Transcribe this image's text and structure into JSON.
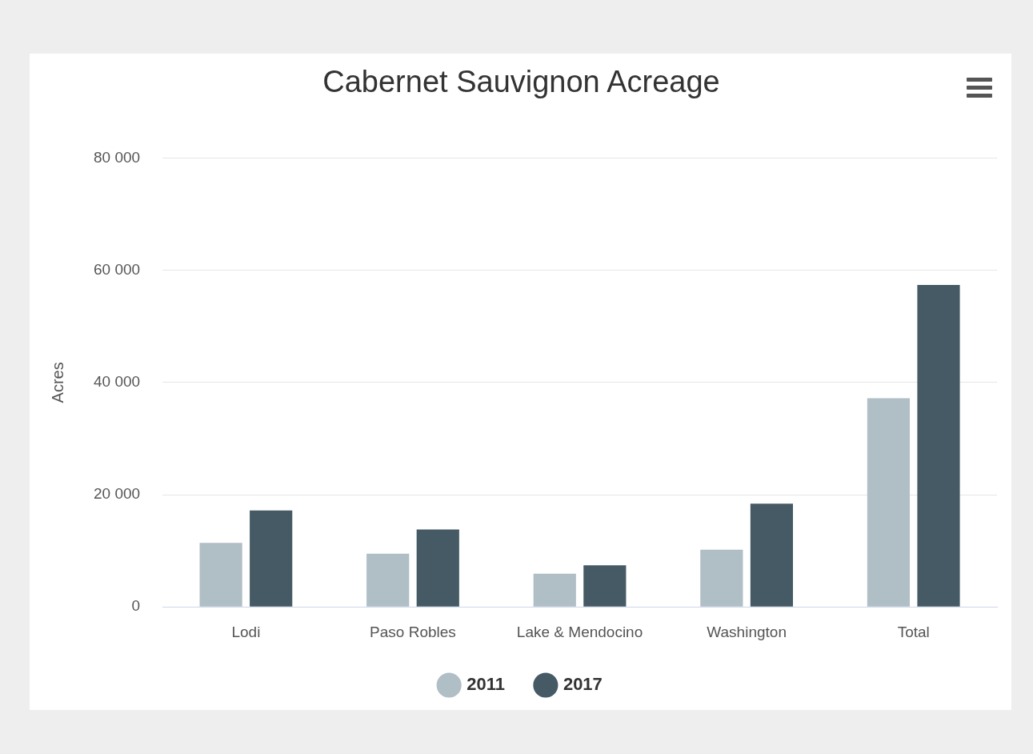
{
  "chart_data": {
    "type": "bar",
    "title": "Cabernet Sauvignon Acreage",
    "ylabel": "Acres",
    "categories": [
      "Lodi",
      "Paso Robles",
      "Lake & Mendocino",
      "Washington",
      "Total"
    ],
    "series": [
      {
        "name": "2011",
        "color": "#b0bec5",
        "values": [
          11400,
          9500,
          5900,
          10200,
          37200
        ]
      },
      {
        "name": "2017",
        "color": "#455a64",
        "values": [
          17200,
          13800,
          7400,
          18400,
          57400
        ]
      }
    ],
    "ylim": [
      0,
      80000
    ],
    "yticks": [
      {
        "value": 0,
        "label": "0"
      },
      {
        "value": 20000,
        "label": "20 000"
      },
      {
        "value": 40000,
        "label": "40 000"
      },
      {
        "value": 60000,
        "label": "60 000"
      },
      {
        "value": 80000,
        "label": "80 000"
      }
    ],
    "grid": "y",
    "legend": "bottom"
  }
}
